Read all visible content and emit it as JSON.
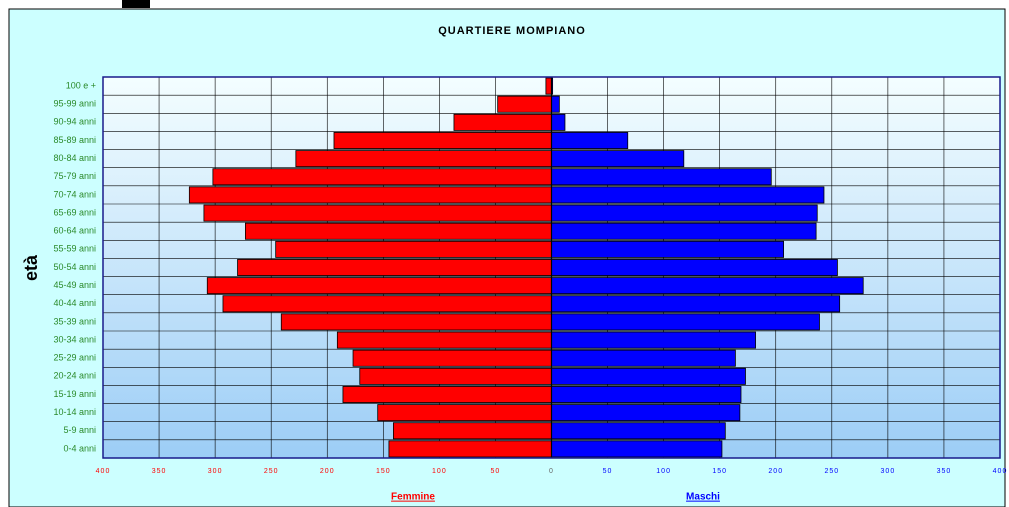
{
  "chart_data": {
    "type": "pyramid",
    "title": "QUARTIERE MOMPIANO",
    "y_label": "età",
    "categories": [
      "100 e +",
      "95-99 anni",
      "90-94 anni",
      "85-89 anni",
      "80-84 anni",
      "75-79 anni",
      "70-74 anni",
      "65-69 anni",
      "60-64 anni",
      "55-59 anni",
      "50-54 anni",
      "45-49 anni",
      "40-44 anni",
      "35-39 anni",
      "30-34 anni",
      "25-29 anni",
      "20-24 anni",
      "15-19 anni",
      "10-14 anni",
      "5-9 anni",
      "0-4 anni"
    ],
    "series": [
      {
        "name": "Femmine",
        "color": "#ff0000",
        "values": [
          5,
          48,
          87,
          194,
          228,
          302,
          323,
          310,
          273,
          246,
          280,
          307,
          293,
          241,
          191,
          177,
          171,
          186,
          155,
          141,
          145
        ]
      },
      {
        "name": "Maschi",
        "color": "#0000ff",
        "values": [
          1,
          7,
          12,
          68,
          118,
          196,
          243,
          237,
          236,
          207,
          255,
          278,
          257,
          239,
          182,
          164,
          173,
          169,
          168,
          155,
          152
        ]
      }
    ],
    "xlim": [
      -400,
      400
    ],
    "xticks": [
      {
        "value": -400,
        "label": "400"
      },
      {
        "value": -350,
        "label": "350"
      },
      {
        "value": -300,
        "label": "300"
      },
      {
        "value": -250,
        "label": "250"
      },
      {
        "value": -200,
        "label": "200"
      },
      {
        "value": -150,
        "label": "150"
      },
      {
        "value": -100,
        "label": "100"
      },
      {
        "value": -50,
        "label": "50"
      },
      0,
      50,
      100,
      150,
      200,
      250,
      300,
      350,
      400
    ],
    "grid": true
  }
}
